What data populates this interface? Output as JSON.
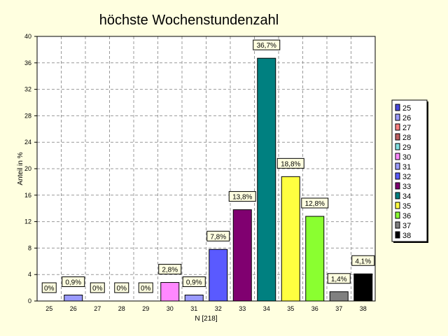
{
  "chart_data": {
    "type": "bar",
    "title": "höchste Wochenstundenzahl",
    "xlabel": "N [218]",
    "ylabel": "Anteil in %",
    "ylim": [
      0,
      40
    ],
    "yticks": [
      0,
      4,
      8,
      12,
      16,
      20,
      24,
      28,
      32,
      36,
      40
    ],
    "grid": true,
    "legend_position": "right",
    "categories": [
      "25",
      "26",
      "27",
      "28",
      "29",
      "30",
      "31",
      "32",
      "33",
      "34",
      "35",
      "36",
      "37",
      "38"
    ],
    "values": [
      0,
      0.9,
      0,
      0,
      0,
      2.8,
      0.9,
      7.8,
      13.8,
      36.7,
      18.8,
      12.8,
      1.4,
      4.1
    ],
    "data_labels": [
      "0%",
      "0,9%",
      "0%",
      "0%",
      "0%",
      "2,8%",
      "0,9%",
      "7,8%",
      "13,8%",
      "36,7%",
      "18,8%",
      "12,8%",
      "1,4%",
      "4,1%"
    ],
    "colors": [
      "#4a4adf",
      "#9a9aff",
      "#ff8080",
      "#c06060",
      "#80e0e0",
      "#ff88ff",
      "#9a9aff",
      "#5a5aff",
      "#800070",
      "#008080",
      "#ffff40",
      "#8aff30",
      "#808080",
      "#000000"
    ],
    "legend": [
      "25",
      "26",
      "27",
      "28",
      "29",
      "30",
      "31",
      "32",
      "33",
      "34",
      "35",
      "36",
      "37",
      "38"
    ]
  }
}
